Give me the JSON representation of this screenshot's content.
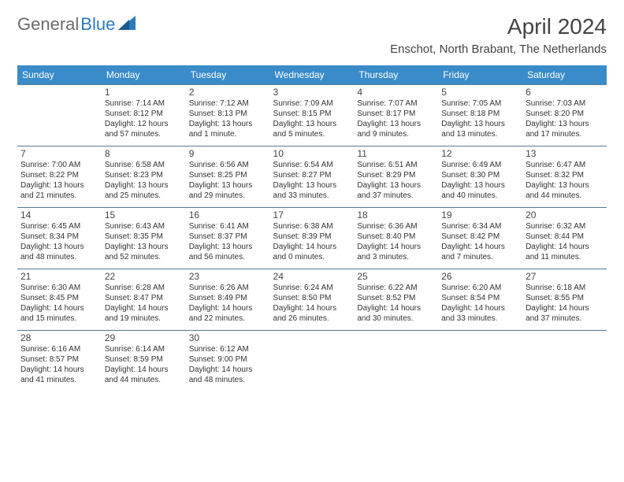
{
  "logo": {
    "part1": "General",
    "part2": "Blue"
  },
  "title": "April 2024",
  "location": "Enschot, North Brabant, The Netherlands",
  "colors": {
    "header_bg": "#3a8bc9",
    "header_text": "#ffffff",
    "border": "#5a7a95",
    "text": "#333333",
    "logo_gray": "#6b6b6b",
    "logo_blue": "#2b7bbf"
  },
  "day_headers": [
    "Sunday",
    "Monday",
    "Tuesday",
    "Wednesday",
    "Thursday",
    "Friday",
    "Saturday"
  ],
  "weeks": [
    [
      null,
      {
        "n": "1",
        "sr": "7:14 AM",
        "ss": "8:12 PM",
        "dl": "12 hours and 57 minutes."
      },
      {
        "n": "2",
        "sr": "7:12 AM",
        "ss": "8:13 PM",
        "dl": "13 hours and 1 minute."
      },
      {
        "n": "3",
        "sr": "7:09 AM",
        "ss": "8:15 PM",
        "dl": "13 hours and 5 minutes."
      },
      {
        "n": "4",
        "sr": "7:07 AM",
        "ss": "8:17 PM",
        "dl": "13 hours and 9 minutes."
      },
      {
        "n": "5",
        "sr": "7:05 AM",
        "ss": "8:18 PM",
        "dl": "13 hours and 13 minutes."
      },
      {
        "n": "6",
        "sr": "7:03 AM",
        "ss": "8:20 PM",
        "dl": "13 hours and 17 minutes."
      }
    ],
    [
      {
        "n": "7",
        "sr": "7:00 AM",
        "ss": "8:22 PM",
        "dl": "13 hours and 21 minutes."
      },
      {
        "n": "8",
        "sr": "6:58 AM",
        "ss": "8:23 PM",
        "dl": "13 hours and 25 minutes."
      },
      {
        "n": "9",
        "sr": "6:56 AM",
        "ss": "8:25 PM",
        "dl": "13 hours and 29 minutes."
      },
      {
        "n": "10",
        "sr": "6:54 AM",
        "ss": "8:27 PM",
        "dl": "13 hours and 33 minutes."
      },
      {
        "n": "11",
        "sr": "6:51 AM",
        "ss": "8:29 PM",
        "dl": "13 hours and 37 minutes."
      },
      {
        "n": "12",
        "sr": "6:49 AM",
        "ss": "8:30 PM",
        "dl": "13 hours and 40 minutes."
      },
      {
        "n": "13",
        "sr": "6:47 AM",
        "ss": "8:32 PM",
        "dl": "13 hours and 44 minutes."
      }
    ],
    [
      {
        "n": "14",
        "sr": "6:45 AM",
        "ss": "8:34 PM",
        "dl": "13 hours and 48 minutes."
      },
      {
        "n": "15",
        "sr": "6:43 AM",
        "ss": "8:35 PM",
        "dl": "13 hours and 52 minutes."
      },
      {
        "n": "16",
        "sr": "6:41 AM",
        "ss": "8:37 PM",
        "dl": "13 hours and 56 minutes."
      },
      {
        "n": "17",
        "sr": "6:38 AM",
        "ss": "8:39 PM",
        "dl": "14 hours and 0 minutes."
      },
      {
        "n": "18",
        "sr": "6:36 AM",
        "ss": "8:40 PM",
        "dl": "14 hours and 3 minutes."
      },
      {
        "n": "19",
        "sr": "6:34 AM",
        "ss": "8:42 PM",
        "dl": "14 hours and 7 minutes."
      },
      {
        "n": "20",
        "sr": "6:32 AM",
        "ss": "8:44 PM",
        "dl": "14 hours and 11 minutes."
      }
    ],
    [
      {
        "n": "21",
        "sr": "6:30 AM",
        "ss": "8:45 PM",
        "dl": "14 hours and 15 minutes."
      },
      {
        "n": "22",
        "sr": "6:28 AM",
        "ss": "8:47 PM",
        "dl": "14 hours and 19 minutes."
      },
      {
        "n": "23",
        "sr": "6:26 AM",
        "ss": "8:49 PM",
        "dl": "14 hours and 22 minutes."
      },
      {
        "n": "24",
        "sr": "6:24 AM",
        "ss": "8:50 PM",
        "dl": "14 hours and 26 minutes."
      },
      {
        "n": "25",
        "sr": "6:22 AM",
        "ss": "8:52 PM",
        "dl": "14 hours and 30 minutes."
      },
      {
        "n": "26",
        "sr": "6:20 AM",
        "ss": "8:54 PM",
        "dl": "14 hours and 33 minutes."
      },
      {
        "n": "27",
        "sr": "6:18 AM",
        "ss": "8:55 PM",
        "dl": "14 hours and 37 minutes."
      }
    ],
    [
      {
        "n": "28",
        "sr": "6:16 AM",
        "ss": "8:57 PM",
        "dl": "14 hours and 41 minutes."
      },
      {
        "n": "29",
        "sr": "6:14 AM",
        "ss": "8:59 PM",
        "dl": "14 hours and 44 minutes."
      },
      {
        "n": "30",
        "sr": "6:12 AM",
        "ss": "9:00 PM",
        "dl": "14 hours and 48 minutes."
      },
      null,
      null,
      null,
      null
    ]
  ]
}
